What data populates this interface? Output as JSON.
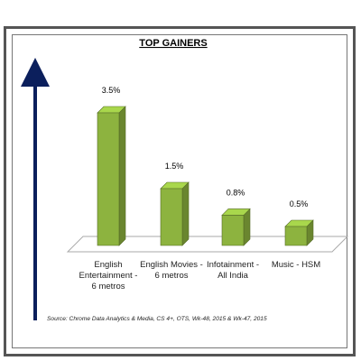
{
  "chart_data": {
    "type": "bar",
    "title": "TOP GAINERS",
    "categories": [
      "English Entertainment - 6 metros",
      "English Movies - 6 metros",
      "Infotainment - All India",
      "Music - HSM"
    ],
    "values": [
      3.5,
      1.5,
      0.8,
      0.5
    ],
    "value_labels": [
      "3.5%",
      "1.5%",
      "0.8%",
      "0.5%"
    ],
    "color": "#8db33f",
    "source": "Source: Chrome Data Analytics & Media, CS 4+, OTS, Wk-48, 2015 & Wk-47, 2015"
  }
}
